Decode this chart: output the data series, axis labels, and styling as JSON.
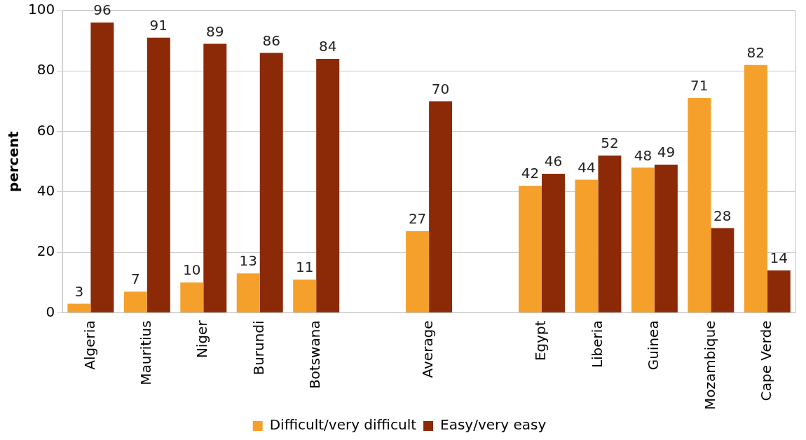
{
  "chart_data": {
    "type": "bar",
    "ylabel": "percent",
    "categories": [
      "Algeria",
      "Mauritius",
      "Niger",
      "Burundi",
      "Botswana",
      null,
      "Average",
      null,
      "Egypt",
      "Liberia",
      "Guinea",
      "Mozambique",
      "Cape Verde"
    ],
    "series": [
      {
        "name": "Difficult/very difficult",
        "color": "#f5a02a",
        "values": [
          3,
          7,
          10,
          13,
          11,
          null,
          27,
          null,
          42,
          44,
          48,
          71,
          82
        ]
      },
      {
        "name": "Easy/very easy",
        "color": "#8c2a08",
        "values": [
          96,
          91,
          89,
          86,
          84,
          null,
          70,
          null,
          46,
          52,
          49,
          28,
          14
        ]
      }
    ],
    "ylim": [
      0,
      100
    ],
    "yticks": [
      0,
      20,
      40,
      60,
      80,
      100
    ],
    "grid": "y",
    "legend": "bottom",
    "data_labels": true
  }
}
